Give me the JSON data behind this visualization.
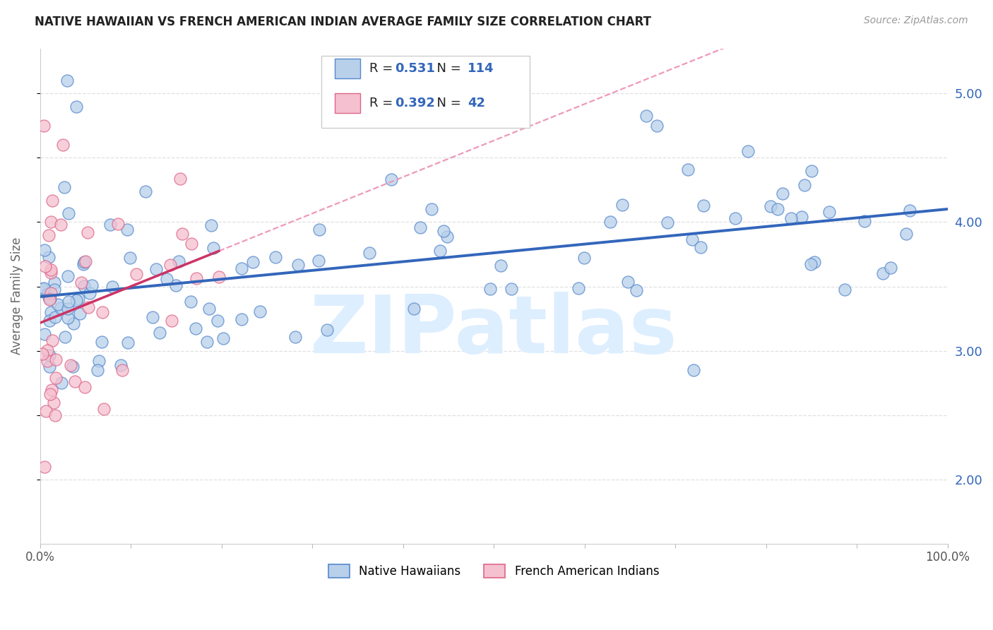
{
  "title": "NATIVE HAWAIIAN VS FRENCH AMERICAN INDIAN AVERAGE FAMILY SIZE CORRELATION CHART",
  "source": "Source: ZipAtlas.com",
  "ylabel": "Average Family Size",
  "yticks_right": [
    2.0,
    3.0,
    4.0,
    5.0
  ],
  "legend_blue_R": "0.531",
  "legend_blue_N": "114",
  "legend_pink_R": "0.392",
  "legend_pink_N": "42",
  "legend_label_blue": "Native Hawaiians",
  "legend_label_pink": "French American Indians",
  "blue_face_color": "#b8d0ea",
  "blue_edge_color": "#5588cc",
  "blue_line_color": "#3366bb",
  "pink_face_color": "#f5c0d0",
  "pink_edge_color": "#dd6688",
  "pink_line_color": "#cc3366",
  "pink_dash_color": "#ee99bb",
  "watermark_text": "ZIPatlas",
  "watermark_color": "#ddeeff",
  "xlim": [
    0,
    100
  ],
  "ylim": [
    1.5,
    5.35
  ],
  "grid_color": "#dddddd",
  "bg_color": "#ffffff",
  "title_color": "#222222",
  "source_color": "#999999",
  "ylabel_color": "#666666",
  "right_tick_color": "#3366bb",
  "n_blue": 114,
  "n_pink": 42,
  "seed": 42
}
